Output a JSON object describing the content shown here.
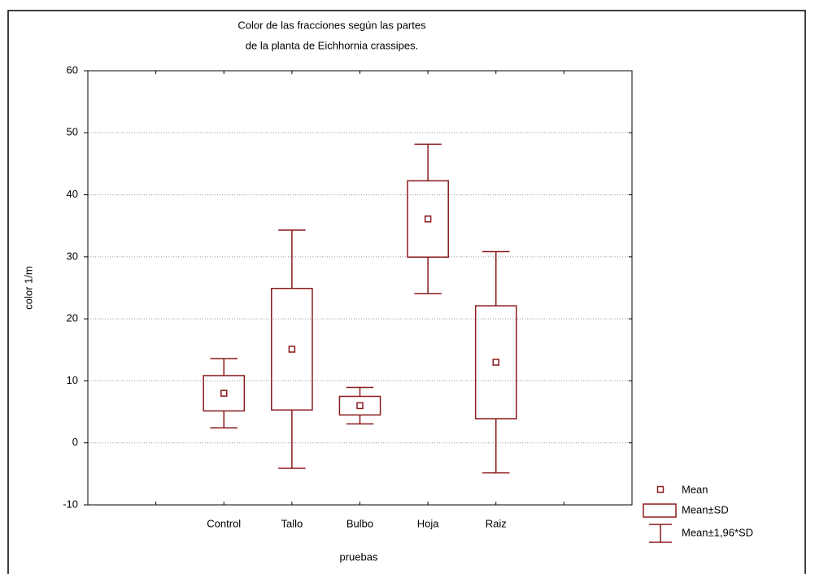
{
  "chart_data": {
    "type": "box",
    "title": [
      "Color de las fracciones según las partes",
      "de la planta de Eichhornia crassipes."
    ],
    "xlabel": "pruebas",
    "ylabel": "color 1/m",
    "categories": [
      null,
      "Control",
      "Tallo",
      "Bulbo",
      "Hoja",
      "Raiz",
      null
    ],
    "means": [
      null,
      8,
      15.1,
      6,
      36.1,
      13,
      null
    ],
    "sd": [
      null,
      2.85,
      9.8,
      1.5,
      6.15,
      9.1,
      null
    ],
    "sd_multiplier": 1.96,
    "legend": [
      "Mean",
      "Mean±SD",
      "Mean±1,96*SD"
    ],
    "color": "#8b1a1a",
    "ylim": [
      -10,
      60
    ],
    "yticks": [
      -10,
      0,
      10,
      20,
      30,
      40,
      50,
      60
    ],
    "grid": true
  }
}
